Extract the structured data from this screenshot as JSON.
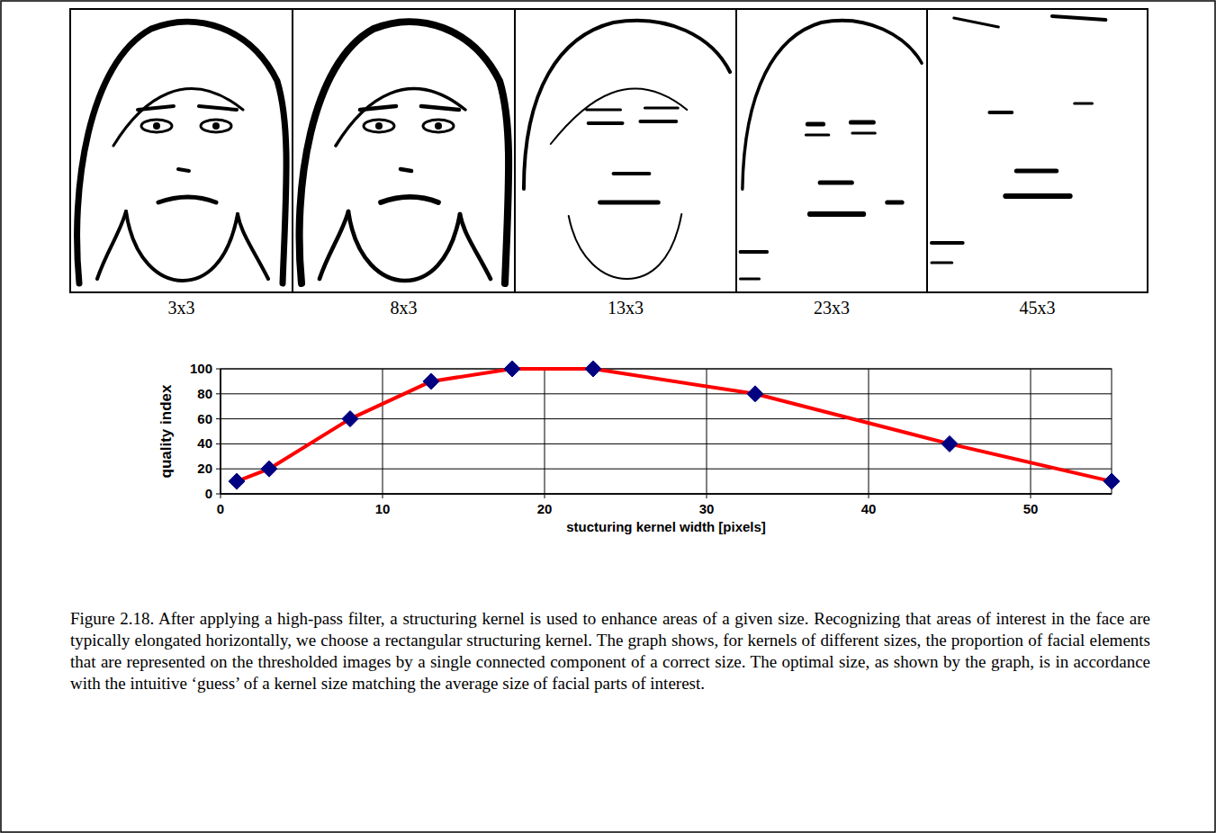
{
  "panels": [
    {
      "label": "3x3"
    },
    {
      "label": "8x3"
    },
    {
      "label": "13x3"
    },
    {
      "label": "23x3"
    },
    {
      "label": "45x3"
    }
  ],
  "chart_data": {
    "type": "line",
    "x_label": "stucturing kernel width [pixels]",
    "y_label": "quality index",
    "x": [
      1,
      3,
      8,
      13,
      18,
      23,
      33,
      45,
      55
    ],
    "values": [
      10,
      20,
      60,
      90,
      100,
      100,
      80,
      40,
      10
    ],
    "color": "#ff0000",
    "marker": "diamond",
    "xlim": [
      0,
      55
    ],
    "xticks": [
      0,
      10,
      20,
      30,
      40,
      50
    ],
    "ylim": [
      0,
      100
    ],
    "yticks": [
      0,
      20,
      40,
      60,
      80,
      100
    ],
    "grid": true
  },
  "caption": "Figure 2.18. After applying a high-pass filter, a structuring kernel is used to enhance areas of  a given size. Recognizing that areas of interest in the face are typically elongated horizontally, we choose a rectangular structuring kernel. The graph shows, for kernels of different sizes, the proportion of facial elements that are represented on the thresholded images by a single connected component of a correct size. The optimal size, as shown by the graph, is in accordance with the intuitive ‘guess’ of a kernel size matching the average size of facial parts of interest."
}
